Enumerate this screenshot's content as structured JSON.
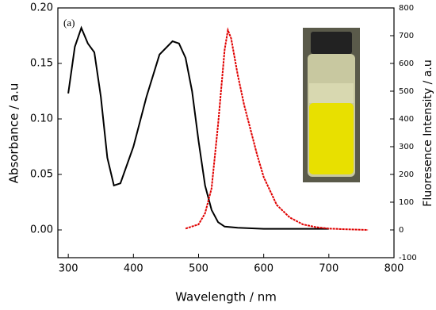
{
  "chart_data": {
    "type": "line",
    "annotation": "(a)",
    "xlabel": "Wavelength / nm",
    "ylabel": "Absorbance / a.u",
    "y2label": "Fluoresence Intensity / a.u",
    "xlim": [
      284,
      800
    ],
    "ylim": [
      -0.025,
      0.2
    ],
    "y2lim": [
      -100,
      800
    ],
    "xticks": [
      300,
      400,
      500,
      600,
      700,
      800
    ],
    "yticks": [
      {
        "value": 0,
        "label": "0.00"
      },
      {
        "value": 0.05,
        "label": "0.05"
      },
      {
        "value": 0.1,
        "label": "0.10"
      },
      {
        "value": 0.15,
        "label": "0.15"
      },
      {
        "value": 0.2,
        "label": "0.20"
      }
    ],
    "y2ticks": [
      -100,
      0,
      100,
      200,
      300,
      400,
      500,
      600,
      700,
      800
    ],
    "series": [
      {
        "color": "#000000",
        "x": [
          300,
          310,
          320,
          330,
          340,
          350,
          360,
          370,
          380,
          400,
          420,
          440,
          460,
          470,
          480,
          490,
          500,
          510,
          520,
          530,
          540,
          560,
          600,
          700
        ],
        "values": [
          0.123,
          0.165,
          0.182,
          0.168,
          0.16,
          0.12,
          0.065,
          0.04,
          0.042,
          0.075,
          0.12,
          0.158,
          0.17,
          0.168,
          0.155,
          0.125,
          0.08,
          0.04,
          0.018,
          0.007,
          0.003,
          0.002,
          0.001,
          0.001
        ]
      },
      {
        "color": "#e00000",
        "axis": "y2",
        "x": [
          480,
          500,
          510,
          520,
          530,
          540,
          545,
          550,
          560,
          570,
          580,
          590,
          600,
          620,
          640,
          660,
          680,
          700,
          730,
          760
        ],
        "values": [
          5,
          20,
          60,
          150,
          380,
          650,
          720,
          690,
          560,
          450,
          360,
          270,
          190,
          90,
          45,
          20,
          10,
          5,
          2,
          0
        ]
      }
    ]
  }
}
